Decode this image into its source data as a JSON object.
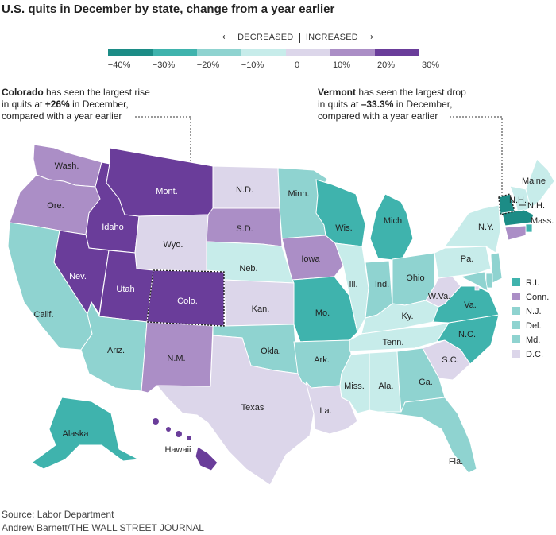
{
  "title": "U.S. quits in December by state, change from a year earlier",
  "legend": {
    "decreased": "DECREASED",
    "increased": "INCREASED",
    "ticks": [
      "−40%",
      "−30%",
      "−20%",
      "−10%",
      "0",
      "10%",
      "20%",
      "30%"
    ],
    "colors": [
      "#1c8c86",
      "#3fb3ad",
      "#8fd3d0",
      "#c7ecea",
      "#dcd6ea",
      "#ab8ec6",
      "#6a3d9a"
    ]
  },
  "annotations": {
    "colorado": {
      "state": "Colorado",
      "text1": " has seen the largest rise",
      "text2": "in quits at ",
      "value": "+26%",
      "text3": " in December,",
      "text4": "compared with a year earlier"
    },
    "vermont": {
      "state": "Vermont",
      "text1": " has seen the largest drop",
      "text2": "in quits at ",
      "value": "–33.3%",
      "text3": " in December,",
      "text4": "compared with a year earlier"
    }
  },
  "states": [
    {
      "abbr": "Wash.",
      "color": "#ab8ec6"
    },
    {
      "abbr": "Ore.",
      "color": "#ab8ec6"
    },
    {
      "abbr": "Calif.",
      "color": "#8fd3d0"
    },
    {
      "abbr": "Idaho",
      "color": "#6a3d9a"
    },
    {
      "abbr": "Nev.",
      "color": "#6a3d9a"
    },
    {
      "abbr": "Mont.",
      "color": "#6a3d9a"
    },
    {
      "abbr": "Wyo.",
      "color": "#dcd6ea"
    },
    {
      "abbr": "Utah",
      "color": "#6a3d9a"
    },
    {
      "abbr": "Colo.",
      "color": "#6a3d9a"
    },
    {
      "abbr": "Ariz.",
      "color": "#8fd3d0"
    },
    {
      "abbr": "N.M.",
      "color": "#ab8ec6"
    },
    {
      "abbr": "N.D.",
      "color": "#dcd6ea"
    },
    {
      "abbr": "S.D.",
      "color": "#ab8ec6"
    },
    {
      "abbr": "Neb.",
      "color": "#c7ecea"
    },
    {
      "abbr": "Kan.",
      "color": "#dcd6ea"
    },
    {
      "abbr": "Okla.",
      "color": "#8fd3d0"
    },
    {
      "abbr": "Texas",
      "color": "#dcd6ea"
    },
    {
      "abbr": "Minn.",
      "color": "#8fd3d0"
    },
    {
      "abbr": "Iowa",
      "color": "#ab8ec6"
    },
    {
      "abbr": "Mo.",
      "color": "#3fb3ad"
    },
    {
      "abbr": "Ark.",
      "color": "#8fd3d0"
    },
    {
      "abbr": "La.",
      "color": "#dcd6ea"
    },
    {
      "abbr": "Wis.",
      "color": "#3fb3ad"
    },
    {
      "abbr": "Ill.",
      "color": "#c7ecea"
    },
    {
      "abbr": "Mich.",
      "color": "#3fb3ad"
    },
    {
      "abbr": "Ind.",
      "color": "#8fd3d0"
    },
    {
      "abbr": "Ohio",
      "color": "#8fd3d0"
    },
    {
      "abbr": "Ky.",
      "color": "#c7ecea"
    },
    {
      "abbr": "Tenn.",
      "color": "#c7ecea"
    },
    {
      "abbr": "Miss.",
      "color": "#c7ecea"
    },
    {
      "abbr": "Ala.",
      "color": "#c7ecea"
    },
    {
      "abbr": "Ga.",
      "color": "#8fd3d0"
    },
    {
      "abbr": "Fla.",
      "color": "#8fd3d0"
    },
    {
      "abbr": "S.C.",
      "color": "#dcd6ea"
    },
    {
      "abbr": "N.C.",
      "color": "#3fb3ad"
    },
    {
      "abbr": "Va.",
      "color": "#3fb3ad"
    },
    {
      "abbr": "W.Va.",
      "color": "#dcd6ea"
    },
    {
      "abbr": "Pa.",
      "color": "#c7ecea"
    },
    {
      "abbr": "N.Y.",
      "color": "#c7ecea"
    },
    {
      "abbr": "Maine",
      "color": "#c7ecea"
    },
    {
      "abbr": "N.H.",
      "color": "#c7ecea"
    },
    {
      "abbr": "Vt.",
      "color": "#1c8c86"
    },
    {
      "abbr": "Mass.",
      "color": "#1c8c86"
    },
    {
      "abbr": "Alaska",
      "color": "#3fb3ad"
    },
    {
      "abbr": "Hawaii",
      "color": "#6a3d9a"
    }
  ],
  "small_states": [
    {
      "abbr": "R.I.",
      "color": "#3fb3ad"
    },
    {
      "abbr": "Conn.",
      "color": "#ab8ec6"
    },
    {
      "abbr": "N.J.",
      "color": "#8fd3d0"
    },
    {
      "abbr": "Del.",
      "color": "#8fd3d0"
    },
    {
      "abbr": "Md.",
      "color": "#8fd3d0"
    },
    {
      "abbr": "D.C.",
      "color": "#dcd6ea"
    }
  ],
  "source": "Source: Labor Department",
  "credit": "Andrew Barnett/THE WALL STREET JOURNAL"
}
